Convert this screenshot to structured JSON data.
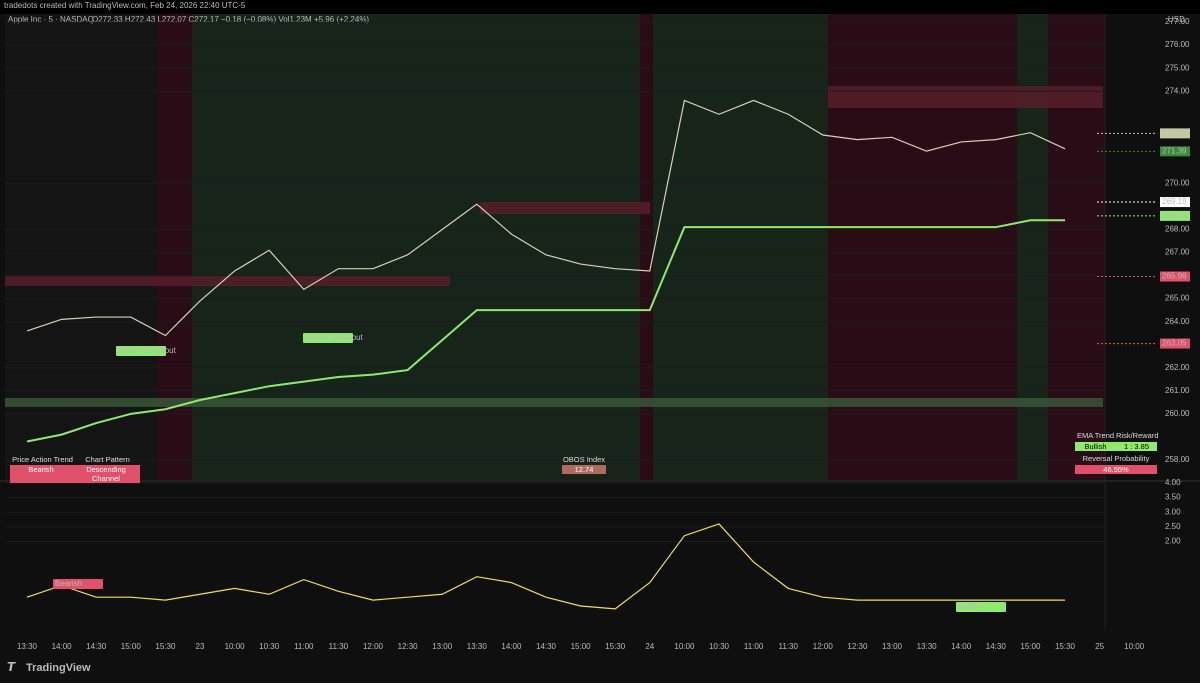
{
  "header": {
    "credit": "tradedots created with TradingView.com, Feb 24, 2026 22:40 UTC-5",
    "symbol": "Apple Inc · 5 · NASDAQ",
    "ohlc": "O272.33 H272.43 L272.07 C272.17 −0.18 (−0.08%) Vol1.23M +5.96 (+2.24%)",
    "currency": "USD"
  },
  "chart_data": [
    {
      "type": "line",
      "title": "Price",
      "categories": [
        "13:30",
        "14:00",
        "14:30",
        "15:00",
        "15:30",
        "23",
        "10:00",
        "10:30",
        "11:00",
        "11:30",
        "12:00",
        "12:30",
        "13:00",
        "13:30",
        "14:00",
        "14:30",
        "15:00",
        "15:30",
        "24",
        "10:00",
        "10:30",
        "11:00",
        "11:30",
        "12:00",
        "12:30",
        "13:00",
        "13:30",
        "14:00",
        "14:30",
        "15:00",
        "15:30",
        "25",
        "10:00"
      ],
      "series": [
        {
          "name": "AAPL",
          "color": "#d8d0b8",
          "values": [
            263.6,
            264.1,
            264.2,
            264.2,
            263.4,
            264.9,
            266.2,
            267.1,
            265.4,
            266.3,
            266.3,
            266.9,
            268.0,
            269.1,
            267.8,
            266.9,
            266.5,
            266.3,
            266.2,
            273.6,
            273.0,
            273.6,
            273.0,
            272.1,
            271.9,
            272.0,
            271.4,
            271.8,
            271.9,
            272.2,
            271.5,
            null,
            null
          ]
        },
        {
          "name": "Trailing Stop",
          "color": "#8eea6c",
          "values": [
            258.8,
            259.1,
            259.6,
            260.0,
            260.2,
            260.6,
            260.9,
            261.2,
            261.4,
            261.6,
            261.7,
            261.9,
            263.2,
            264.5,
            264.5,
            264.5,
            264.5,
            264.5,
            264.5,
            268.1,
            268.1,
            268.1,
            268.1,
            268.1,
            268.1,
            268.1,
            268.1,
            268.1,
            268.1,
            268.4,
            268.4,
            null,
            null
          ]
        }
      ],
      "ylim": [
        257.13,
        277.35
      ],
      "yticks": [
        {
          "value": 277,
          "label": "277.00"
        },
        {
          "value": 276,
          "label": "276.00"
        },
        {
          "value": 275,
          "label": "275.00"
        },
        {
          "value": 274,
          "label": "274.00"
        },
        {
          "value": 270,
          "label": "270.00"
        },
        {
          "value": 268,
          "label": "268.00"
        },
        {
          "value": 267,
          "label": "267.00"
        },
        {
          "value": 266,
          "label": "266.00"
        },
        {
          "value": 265,
          "label": "265.00"
        },
        {
          "value": 264,
          "label": "264.00"
        },
        {
          "value": 262,
          "label": "262.00"
        },
        {
          "value": 261,
          "label": "261.00"
        },
        {
          "value": 260,
          "label": "260.00"
        },
        {
          "value": 258,
          "label": "258.00"
        }
      ],
      "price_markers": [
        {
          "value": 272.17,
          "color": "#c9c9a0"
        },
        {
          "value": 271.39,
          "color": "#3c8a3c"
        },
        {
          "value": 269.19,
          "color": "#ffffff"
        },
        {
          "value": 268.59,
          "color": "#8eea6c"
        },
        {
          "value": 265.96,
          "color": "#e0506a"
        },
        {
          "value": 263.05,
          "color": "#e0506a"
        }
      ],
      "annotations": [
        "Bullish Breakout",
        "Bullish Breakout"
      ]
    },
    {
      "type": "line",
      "title": "Oscillator",
      "series": [
        {
          "name": "Momentum",
          "color": "#f0e050",
          "values": [
            0.1,
            0.5,
            0.1,
            0.1,
            0,
            0.2,
            0.4,
            0.2,
            0.7,
            0.3,
            0,
            0.1,
            0.2,
            0.8,
            0.6,
            0.1,
            -0.2,
            -0.3,
            0.6,
            2.2,
            2.6,
            1.3,
            0.4,
            0.1,
            0,
            0,
            0,
            0,
            0,
            0,
            0,
            null,
            null
          ]
        }
      ],
      "ylim": [
        -0.85,
        4
      ],
      "yticks": [
        {
          "value": 4,
          "label": "4.00"
        },
        {
          "value": 3.5,
          "label": "3.50"
        },
        {
          "value": 3,
          "label": "3.00"
        },
        {
          "value": 2.5,
          "label": "2.50"
        },
        {
          "value": 2,
          "label": "2.00"
        }
      ],
      "annotations": [
        "Bearish",
        "Bullish"
      ]
    }
  ],
  "panels": {
    "left": {
      "headers": [
        "Price Action Trend",
        "Chart Pattern"
      ],
      "values": [
        "Bearish",
        "Descending Channel"
      ]
    },
    "middle": {
      "header": "OBOS Index",
      "value": "12.74"
    },
    "right": {
      "headers": [
        "EMA Trend",
        "Risk/Reward"
      ],
      "values": [
        "Bullish",
        "1 : 3.85"
      ],
      "subheader": "Reversal Probability",
      "subvalue": "46.55%"
    }
  },
  "footer": {
    "brand": "TradingView"
  }
}
